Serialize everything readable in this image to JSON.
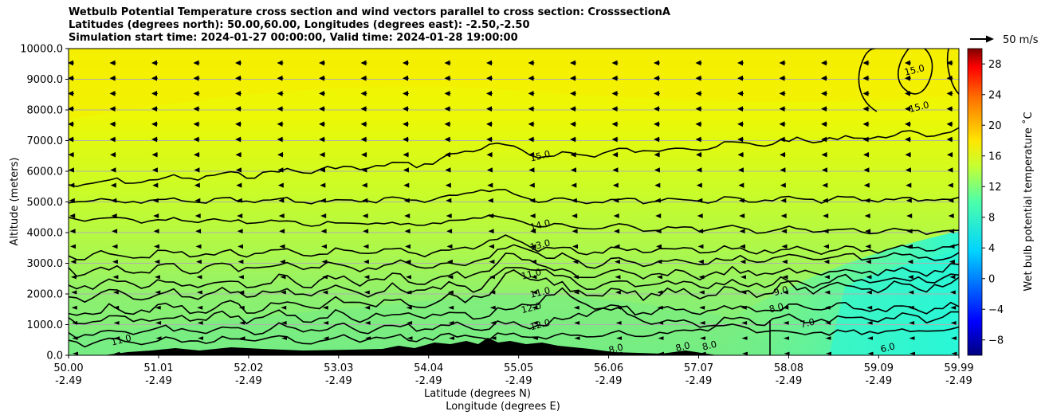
{
  "chart_data": {
    "type": "heatmap",
    "title_lines": [
      "Wetbulb Potential Temperature cross section and wind vectors parallel to cross section: CrosssectionA",
      "Latitudes (degrees north): 50.00,60.00, Longitudes (degrees east): -2.50,-2.50",
      "Simulation start time: 2024-01-27 00:00:00, Valid time: 2024-01-28 19:00:00"
    ],
    "xlabel_lines": [
      "Latitude (degrees N)",
      "Longitude (degrees E)"
    ],
    "ylabel": "Altitude (meters)",
    "ylim": [
      0,
      10000
    ],
    "xlim": [
      50.0,
      59.99
    ],
    "y_ticks": [
      0,
      1000,
      2000,
      3000,
      4000,
      5000,
      6000,
      7000,
      8000,
      9000,
      10000
    ],
    "y_tick_labels": [
      "0.0",
      "1000.0",
      "2000.0",
      "3000.0",
      "4000.0",
      "5000.0",
      "6000.0",
      "7000.0",
      "8000.0",
      "9000.0",
      "10000.0"
    ],
    "x_ticks": [
      50.0,
      51.01,
      52.02,
      53.03,
      54.04,
      55.05,
      56.06,
      57.07,
      58.08,
      59.09,
      59.99
    ],
    "x_tick_labels": [
      [
        "50.00",
        "-2.49"
      ],
      [
        "51.01",
        "-2.49"
      ],
      [
        "52.02",
        "-2.49"
      ],
      [
        "53.03",
        "-2.49"
      ],
      [
        "54.04",
        "-2.49"
      ],
      [
        "55.05",
        "-2.49"
      ],
      [
        "56.06",
        "-2.49"
      ],
      [
        "57.07",
        "-2.49"
      ],
      [
        "58.08",
        "-2.49"
      ],
      [
        "59.09",
        "-2.49"
      ],
      [
        "59.99",
        "-2.49"
      ]
    ],
    "grid": "horizontal",
    "colorbar": {
      "label": "Wet bulb potential temperature ˚C",
      "range": [
        -10,
        30
      ],
      "colormap": "jet",
      "tick_values": [
        -8,
        -4,
        0,
        4,
        8,
        12,
        16,
        20,
        24,
        28
      ],
      "tick_labels": [
        "−8",
        "−4",
        "0",
        "4",
        "8",
        "12",
        "16",
        "20",
        "24",
        "28"
      ]
    },
    "quiver_key": "50 m/s",
    "contour_labels": [
      {
        "text": "15.0",
        "lat": 55.3,
        "alt": 6400
      },
      {
        "text": "14.0",
        "lat": 55.3,
        "alt": 4150
      },
      {
        "text": "13.0",
        "lat": 55.3,
        "alt": 3500
      },
      {
        "text": "11.0",
        "lat": 55.2,
        "alt": 2550
      },
      {
        "text": "11.0",
        "lat": 55.3,
        "alt": 1950
      },
      {
        "text": "12.0",
        "lat": 55.2,
        "alt": 1450
      },
      {
        "text": "12.0",
        "lat": 55.3,
        "alt": 900
      },
      {
        "text": "9.0",
        "lat": 58.0,
        "alt": 2000
      },
      {
        "text": "8.0",
        "lat": 57.95,
        "alt": 1450
      },
      {
        "text": "7.0",
        "lat": 58.3,
        "alt": 950
      },
      {
        "text": "8.0",
        "lat": 56.15,
        "alt": 120
      },
      {
        "text": "8.0",
        "lat": 56.9,
        "alt": 180
      },
      {
        "text": "8.0",
        "lat": 57.2,
        "alt": 220
      },
      {
        "text": "6.0",
        "lat": 59.2,
        "alt": 150
      },
      {
        "text": "11.0",
        "lat": 50.6,
        "alt": 400
      },
      {
        "text": "15.0",
        "lat": 59.5,
        "alt": 9200
      },
      {
        "text": "15.0",
        "lat": 59.55,
        "alt": 8000
      }
    ]
  },
  "colors": {
    "contour": "#000000",
    "grid": "#b0b0b0",
    "arrows": "#000000",
    "terrain": "#000000"
  }
}
